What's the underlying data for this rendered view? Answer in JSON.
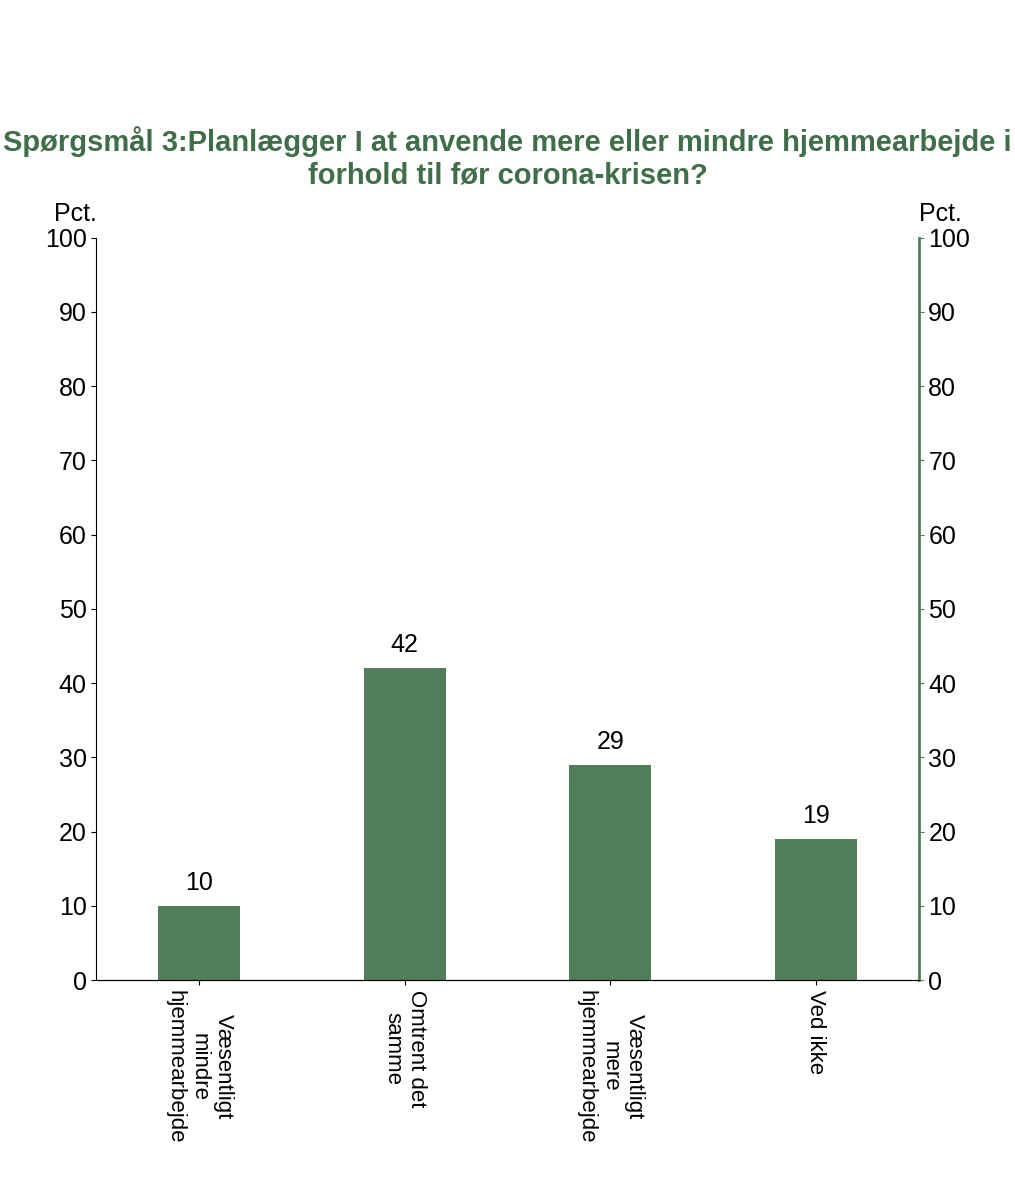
{
  "chart_data": {
    "type": "bar",
    "title": "Spørgsmål 3:Planlægger I at anvende mere eller mindre hjemmearbejde i forhold til før corona-krisen?",
    "categories": [
      "Væsentligt mindre hjemmearbejde",
      "Omtrent det samme",
      "Væsentligt mere hjemmearbejde",
      "Ved ikke"
    ],
    "values": [
      10,
      42,
      29,
      19
    ],
    "color": "#527d5a",
    "y_label": "Pct.",
    "y2_label": "Pct.",
    "ylim": [
      0,
      100
    ],
    "yticks": [
      0,
      10,
      20,
      30,
      40,
      50,
      60,
      70,
      80,
      90,
      100
    ],
    "y2lim": [
      0,
      100
    ],
    "y2ticks": [
      0,
      10,
      20,
      30,
      40,
      50,
      60,
      70,
      80,
      90,
      100
    ],
    "grid": false,
    "data_labels": true
  }
}
